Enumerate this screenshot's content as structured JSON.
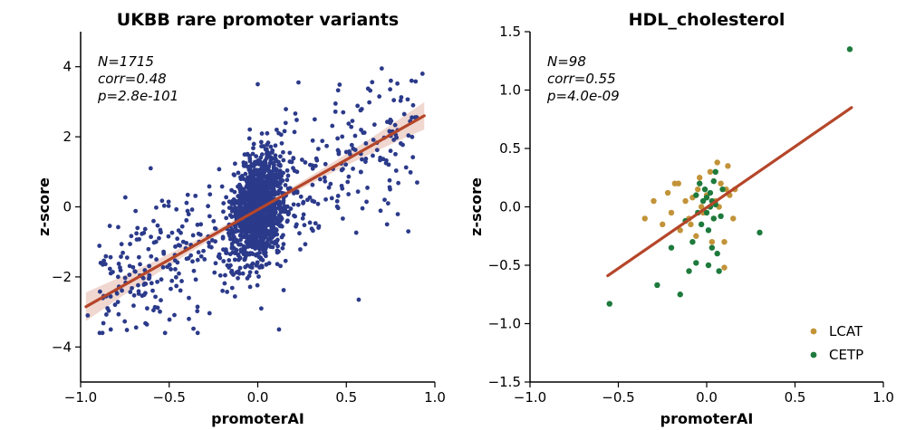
{
  "chart_data": [
    {
      "type": "scatter",
      "title": "UKBB rare promoter variants",
      "xlabel": "promoterAI",
      "ylabel": "z-score",
      "xlim": [
        -1.0,
        1.0
      ],
      "ylim": [
        -5.0,
        5.0
      ],
      "xticks": [
        "−1.0",
        "−0.5",
        "0.0",
        "0.5",
        "1.0"
      ],
      "yticks": [
        "−4",
        "−2",
        "0",
        "2",
        "4"
      ],
      "annotation": [
        "N=1715",
        "corr=0.48",
        "p=2.8e-101"
      ],
      "point_color": "#2b3a8a",
      "n_points": 1715,
      "regression": {
        "x": [
          -0.97,
          0.94
        ],
        "y": [
          -2.85,
          2.6
        ],
        "color": "#b5462a",
        "band_color": "#f0d7cf"
      },
      "notable_points": [
        {
          "x": 0.93,
          "y": 3.8
        },
        {
          "x": 0.7,
          "y": 3.95
        },
        {
          "x": 0.87,
          "y": 2.55
        },
        {
          "x": 0.57,
          "y": -2.65
        },
        {
          "x": -0.96,
          "y": -3.1
        },
        {
          "x": -0.83,
          "y": -3.5
        },
        {
          "x": 0.85,
          "y": -0.7
        },
        {
          "x": 0.73,
          "y": -0.5
        },
        {
          "x": 0.12,
          "y": -3.5
        },
        {
          "x": 0.0,
          "y": 3.5
        },
        {
          "x": 0.23,
          "y": 3.55
        }
      ],
      "grid": false
    },
    {
      "type": "scatter",
      "title": "HDL_cholesterol",
      "xlabel": "promoterAI",
      "ylabel": "z-score",
      "xlim": [
        -1.0,
        1.0
      ],
      "ylim": [
        -1.5,
        1.5
      ],
      "xticks": [
        "−1.0",
        "−0.5",
        "0.0",
        "0.5",
        "1.0"
      ],
      "yticks": [
        "−1.5",
        "−1.0",
        "−0.5",
        "0.0",
        "0.5",
        "1.0",
        "1.5"
      ],
      "annotation": [
        "N=98",
        "corr=0.55",
        "p=4.0e-09"
      ],
      "regression": {
        "x": [
          -0.56,
          0.82
        ],
        "y": [
          -0.59,
          0.85
        ],
        "color": "#b5462a"
      },
      "legend_placement": "bottom-right",
      "series": [
        {
          "name": "LCAT",
          "color": "#c29338",
          "points": [
            [
              -0.35,
              -0.1
            ],
            [
              -0.3,
              0.05
            ],
            [
              -0.25,
              -0.15
            ],
            [
              -0.22,
              0.12
            ],
            [
              -0.2,
              -0.05
            ],
            [
              -0.18,
              0.2
            ],
            [
              -0.15,
              -0.2
            ],
            [
              -0.12,
              0.05
            ],
            [
              -0.1,
              -0.1
            ],
            [
              -0.08,
              0.08
            ],
            [
              -0.06,
              -0.25
            ],
            [
              -0.05,
              0.15
            ],
            [
              -0.03,
              0.0
            ],
            [
              -0.02,
              -0.05
            ],
            [
              0.0,
              0.1
            ],
            [
              0.02,
              0.3
            ],
            [
              0.04,
              -0.1
            ],
            [
              0.05,
              0.05
            ],
            [
              0.06,
              0.38
            ],
            [
              0.08,
              0.2
            ],
            [
              0.1,
              -0.3
            ],
            [
              0.12,
              0.35
            ],
            [
              0.13,
              0.1
            ],
            [
              0.15,
              -0.1
            ],
            [
              0.16,
              0.15
            ],
            [
              0.03,
              -0.3
            ],
            [
              -0.04,
              0.25
            ],
            [
              0.07,
              0.0
            ],
            [
              0.1,
              -0.52
            ],
            [
              0.11,
              0.15
            ],
            [
              -0.16,
              0.2
            ],
            [
              -0.09,
              -0.15
            ]
          ]
        },
        {
          "name": "CETP",
          "color": "#1e7a3c",
          "points": [
            [
              -0.55,
              -0.83
            ],
            [
              -0.15,
              -0.75
            ],
            [
              -0.12,
              -0.12
            ],
            [
              -0.1,
              -0.55
            ],
            [
              -0.08,
              -0.3
            ],
            [
              -0.06,
              0.1
            ],
            [
              -0.05,
              -0.05
            ],
            [
              -0.04,
              0.2
            ],
            [
              -0.03,
              -0.15
            ],
            [
              -0.02,
              0.05
            ],
            [
              -0.01,
              0.15
            ],
            [
              0.0,
              -0.05
            ],
            [
              0.0,
              0.08
            ],
            [
              0.01,
              -0.2
            ],
            [
              0.02,
              0.12
            ],
            [
              0.02,
              0.0
            ],
            [
              0.03,
              -0.35
            ],
            [
              0.03,
              0.05
            ],
            [
              0.04,
              -0.1
            ],
            [
              0.05,
              0.02
            ],
            [
              0.05,
              0.3
            ],
            [
              0.06,
              -0.4
            ],
            [
              0.07,
              -0.55
            ],
            [
              0.08,
              -0.08
            ],
            [
              0.09,
              0.15
            ],
            [
              0.3,
              -0.22
            ],
            [
              0.81,
              1.35
            ],
            [
              -0.06,
              -0.48
            ],
            [
              -0.28,
              -0.67
            ],
            [
              -0.2,
              -0.35
            ],
            [
              0.01,
              -0.5
            ],
            [
              0.04,
              0.22
            ]
          ]
        }
      ],
      "grid": false
    }
  ]
}
